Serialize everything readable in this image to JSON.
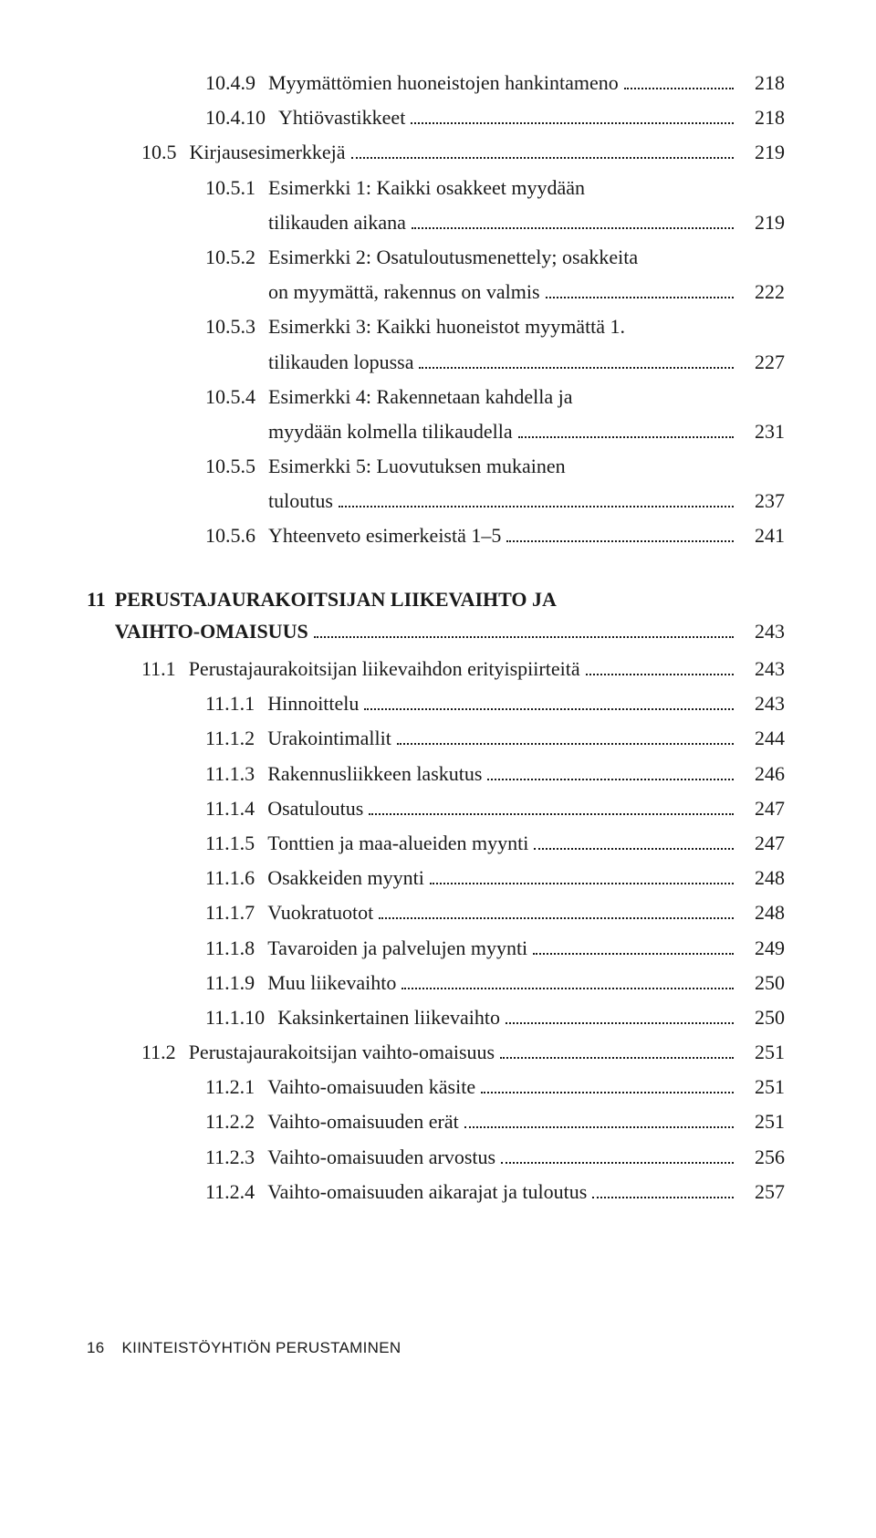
{
  "toc": [
    {
      "indent": 1,
      "num": "10.4.9",
      "label": "Myymättömien huoneistojen hankintameno",
      "page": "218",
      "twoLine": false
    },
    {
      "indent": 1,
      "num": "10.4.10",
      "label": "Yhtiövastikkeet",
      "page": "218",
      "twoLine": false
    },
    {
      "indent": 0,
      "num": "10.5",
      "label": "Kirjausesimerkkejä",
      "page": "219",
      "twoLine": false
    },
    {
      "indent": 1,
      "num": "10.5.1",
      "label1": "Esimerkki 1: Kaikki osakkeet myydään",
      "label2": "tilikauden aikana",
      "page": "219",
      "twoLine": true
    },
    {
      "indent": 1,
      "num": "10.5.2",
      "label1": "Esimerkki 2: Osatuloutusmenettely; osakkeita",
      "label2": "on myymättä, rakennus on valmis",
      "page": "222",
      "twoLine": true
    },
    {
      "indent": 1,
      "num": "10.5.3",
      "label1": "Esimerkki 3: Kaikki huoneistot myymättä 1.",
      "label2": "tilikauden lopussa",
      "page": "227",
      "twoLine": true
    },
    {
      "indent": 1,
      "num": "10.5.4",
      "label1": "Esimerkki 4: Rakennetaan kahdella ja",
      "label2": "myydään kolmella tilikaudella",
      "page": "231",
      "twoLine": true
    },
    {
      "indent": 1,
      "num": "10.5.5",
      "label1": "Esimerkki 5: Luovutuksen mukainen",
      "label2": "tuloutus",
      "page": "237",
      "twoLine": true
    },
    {
      "indent": 1,
      "num": "10.5.6",
      "label": "Yhteenveto esimerkeistä 1–5",
      "page": "241",
      "twoLine": false
    }
  ],
  "chapter": {
    "num": "11",
    "title1": "PERUSTAJAURAKOITSIJAN LIIKEVAIHTO JA",
    "title2": "VAIHTO-OMAISUUS",
    "page": "243"
  },
  "toc2": [
    {
      "indent": 0,
      "num": "11.1",
      "label": "Perustajaurakoitsijan liikevaihdon erityispiirteitä",
      "page": "243"
    },
    {
      "indent": 1,
      "num": "11.1.1",
      "label": "Hinnoittelu",
      "page": "243"
    },
    {
      "indent": 1,
      "num": "11.1.2",
      "label": "Urakointimallit",
      "page": "244"
    },
    {
      "indent": 1,
      "num": "11.1.3",
      "label": "Rakennusliikkeen laskutus",
      "page": "246"
    },
    {
      "indent": 1,
      "num": "11.1.4",
      "label": "Osatuloutus",
      "page": "247"
    },
    {
      "indent": 1,
      "num": "11.1.5",
      "label": "Tonttien ja maa-alueiden myynti",
      "page": "247"
    },
    {
      "indent": 1,
      "num": "11.1.6",
      "label": "Osakkeiden myynti",
      "page": "248"
    },
    {
      "indent": 1,
      "num": "11.1.7",
      "label": "Vuokratuotot",
      "page": "248"
    },
    {
      "indent": 1,
      "num": "11.1.8",
      "label": "Tavaroiden ja palvelujen myynti",
      "page": "249"
    },
    {
      "indent": 1,
      "num": "11.1.9",
      "label": "Muu liikevaihto",
      "page": "250"
    },
    {
      "indent": 1,
      "num": "11.1.10",
      "label": "Kaksinkertainen liikevaihto",
      "page": "250"
    },
    {
      "indent": 0,
      "num": "11.2",
      "label": "Perustajaurakoitsijan vaihto-omaisuus",
      "page": "251"
    },
    {
      "indent": 1,
      "num": "11.2.1",
      "label": "Vaihto-omaisuuden käsite",
      "page": "251"
    },
    {
      "indent": 1,
      "num": "11.2.2",
      "label": "Vaihto-omaisuuden erät",
      "page": "251"
    },
    {
      "indent": 1,
      "num": "11.2.3",
      "label": "Vaihto-omaisuuden arvostus",
      "page": "256"
    },
    {
      "indent": 1,
      "num": "11.2.4",
      "label": "Vaihto-omaisuuden aikarajat ja tuloutus",
      "page": "257"
    }
  ],
  "footer": {
    "pageNum": "16",
    "title": "KIINTEISTÖYHTIÖN PERUSTAMINEN"
  },
  "style": {
    "fontFamily": "Georgia serif",
    "fontSizeBody": 22,
    "fontSizeFooter": 17,
    "textColor": "#1a1a1a",
    "background": "#ffffff",
    "leaderStyle": "dotted",
    "pageWidth": 960,
    "pageHeight": 1685
  }
}
